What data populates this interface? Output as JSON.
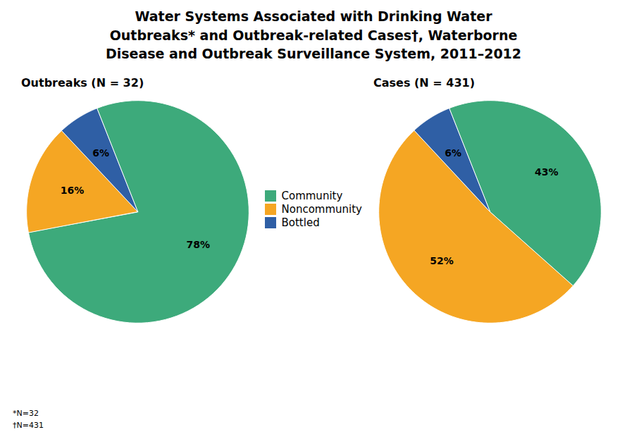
{
  "title": "Water Systems Associated with Drinking Water\nOutbreaks* and Outbreak-related Cases†, Waterborne\nDisease and Outbreak Surveillance System, 2011–2012",
  "annotations": [
    "*N=32",
    "†N=431"
  ],
  "chart_data": [
    {
      "type": "pie",
      "title": "Outbreaks (N = 32)",
      "categories": [
        "Community",
        "Noncommunity",
        "Bottled"
      ],
      "values": [
        78,
        16,
        6
      ],
      "value_labels": [
        "78%",
        "16%",
        "6%"
      ],
      "colors": [
        "#3DAA7B",
        "#F5A623",
        "#2F5FA5"
      ],
      "data_labels": true,
      "legend": "center"
    },
    {
      "type": "pie",
      "title": "Cases (N = 431)",
      "categories": [
        "Community",
        "Noncommunity",
        "Bottled"
      ],
      "values": [
        43,
        52,
        6
      ],
      "value_labels": [
        "43%",
        "52%",
        "6%"
      ],
      "colors": [
        "#3DAA7B",
        "#F5A623",
        "#2F5FA5"
      ],
      "data_labels": true,
      "legend": "center"
    }
  ]
}
